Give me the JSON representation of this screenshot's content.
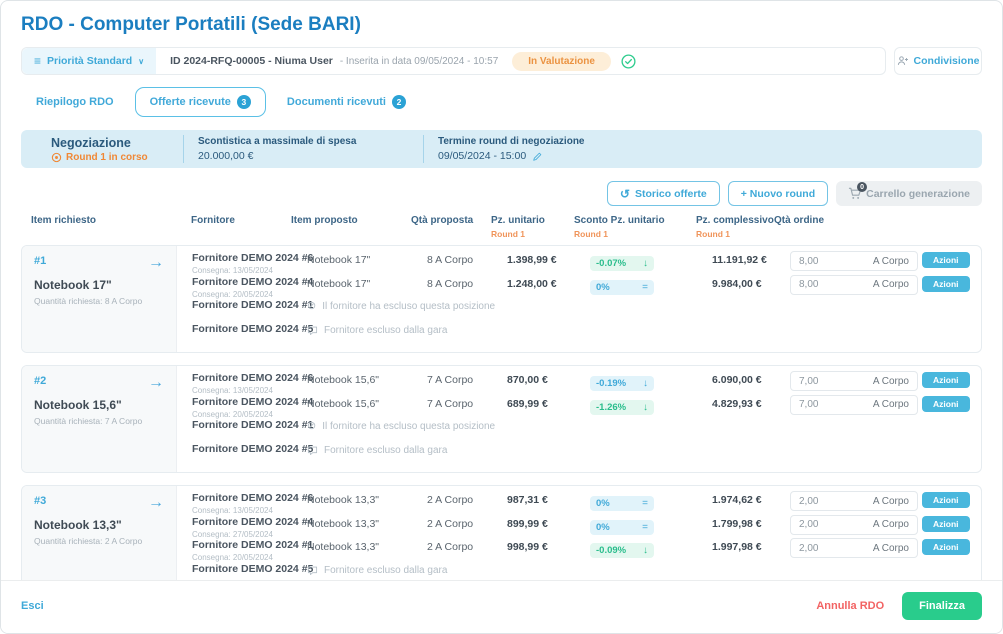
{
  "page": {
    "title": "RDO - Computer Portatili (Sede BARI)"
  },
  "topbar": {
    "priority_label": "Priorità Standard",
    "id_text": "ID 2024-RFQ-00005 - Niuma User",
    "inserted_text": "- Inserita in data 09/05/2024 - 10:57",
    "status_badge": "In Valutazione",
    "share_label": "Condivisione"
  },
  "tabs": [
    {
      "label": "Riepilogo RDO",
      "badge": null,
      "active": false
    },
    {
      "label": "Offerte ricevute",
      "badge": "3",
      "active": true
    },
    {
      "label": "Documenti ricevuti",
      "badge": "2",
      "active": false
    }
  ],
  "negotiation": {
    "title": "Negoziazione",
    "round_status": "Round 1 in corso",
    "discount_label": "Scontistica a massimale di spesa",
    "discount_value": "20.000,00 €",
    "deadline_label": "Termine round di negoziazione",
    "deadline_value": "09/05/2024 - 15:00"
  },
  "actions": {
    "history_label": "Storico offerte",
    "new_round_label": "+ Nuovo round",
    "cart_label": "Carrello generazione",
    "cart_badge": "0"
  },
  "table": {
    "headers": {
      "item_requested": "Item richiesto",
      "supplier": "Fornitore",
      "item_proposed": "Item proposto",
      "qty_proposed": "Qtà proposta",
      "unit_price": "Pz. unitario",
      "discount": "Sconto Pz. unitario",
      "total_price": "Pz. complessivo",
      "order_qty": "Qtà ordine"
    },
    "round_sublabel": "Round 1",
    "groups": [
      {
        "number": "#1",
        "name": "Notebook 17\"",
        "requested_qty": "Quantità richiesta: 8 A Corpo",
        "rows": [
          {
            "type": "offer",
            "supplier": "Fornitore DEMO 2024 #6",
            "delivery": "Consegna: 13/05/2024",
            "item": "Notebook 17\"",
            "qty": "8 A Corpo",
            "unit_price": "1.398,99 €",
            "discount": "-0.07%",
            "trend": "down",
            "style": "green",
            "total": "11.191,92 €",
            "order_qty": "8,00",
            "order_unit": "A Corpo",
            "action": "Azioni"
          },
          {
            "type": "offer",
            "supplier": "Fornitore DEMO 2024 #4",
            "delivery": "Consegna: 20/05/2024",
            "item": "Notebook 17\"",
            "qty": "8 A Corpo",
            "unit_price": "1.248,00 €",
            "discount": "0%",
            "trend": "equal",
            "style": "blue",
            "total": "9.984,00 €",
            "order_qty": "8,00",
            "order_unit": "A Corpo",
            "action": "Azioni"
          },
          {
            "type": "excluded-position",
            "supplier": "Fornitore DEMO 2024 #1",
            "note": "Il fornitore ha escluso questa posizione"
          },
          {
            "type": "excluded-tender",
            "supplier": "Fornitore DEMO 2024 #5",
            "note": "Fornitore escluso dalla gara"
          }
        ]
      },
      {
        "number": "#2",
        "name": "Notebook 15,6\"",
        "requested_qty": "Quantità richiesta: 7 A Corpo",
        "rows": [
          {
            "type": "offer",
            "supplier": "Fornitore DEMO 2024 #6",
            "delivery": "Consegna: 13/05/2024",
            "item": "Notebook 15,6\"",
            "qty": "7 A Corpo",
            "unit_price": "870,00 €",
            "discount": "-0.19%",
            "trend": "down",
            "style": "blue",
            "total": "6.090,00 €",
            "order_qty": "7,00",
            "order_unit": "A Corpo",
            "action": "Azioni"
          },
          {
            "type": "offer",
            "supplier": "Fornitore DEMO 2024 #4",
            "delivery": "Consegna: 20/05/2024",
            "item": "Notebook 15,6\"",
            "qty": "7 A Corpo",
            "unit_price": "689,99 €",
            "discount": "-1.26%",
            "trend": "down",
            "style": "green",
            "total": "4.829,93 €",
            "order_qty": "7,00",
            "order_unit": "A Corpo",
            "action": "Azioni"
          },
          {
            "type": "excluded-position",
            "supplier": "Fornitore DEMO 2024 #1",
            "note": "Il fornitore ha escluso questa posizione"
          },
          {
            "type": "excluded-tender",
            "supplier": "Fornitore DEMO 2024 #5",
            "note": "Fornitore escluso dalla gara"
          }
        ]
      },
      {
        "number": "#3",
        "name": "Notebook 13,3\"",
        "requested_qty": "Quantità richiesta: 2 A Corpo",
        "rows": [
          {
            "type": "offer",
            "supplier": "Fornitore DEMO 2024 #6",
            "delivery": "Consegna: 13/05/2024",
            "item": "Notebook 13,3\"",
            "qty": "2 A Corpo",
            "unit_price": "987,31 €",
            "discount": "0%",
            "trend": "equal",
            "style": "blue",
            "total": "1.974,62 €",
            "order_qty": "2,00",
            "order_unit": "A Corpo",
            "action": "Azioni"
          },
          {
            "type": "offer",
            "supplier": "Fornitore DEMO 2024 #4",
            "delivery": "Consegna: 27/05/2024",
            "item": "Notebook 13,3\"",
            "qty": "2 A Corpo",
            "unit_price": "899,99 €",
            "discount": "0%",
            "trend": "equal",
            "style": "blue",
            "total": "1.799,98 €",
            "order_qty": "2,00",
            "order_unit": "A Corpo",
            "action": "Azioni"
          },
          {
            "type": "offer",
            "supplier": "Fornitore DEMO 2024 #1",
            "delivery": "Consegna: 20/05/2024",
            "item": "Notebook 13,3\"",
            "qty": "2 A Corpo",
            "unit_price": "998,99 €",
            "discount": "-0.09%",
            "trend": "down",
            "style": "green",
            "total": "1.997,98 €",
            "order_qty": "2,00",
            "order_unit": "A Corpo",
            "action": "Azioni"
          },
          {
            "type": "excluded-tender",
            "supplier": "Fornitore DEMO 2024 #5",
            "note": "Fornitore escluso dalla gara"
          }
        ]
      }
    ]
  },
  "footer": {
    "exit_label": "Esci",
    "cancel_label": "Annulla RDO",
    "finalize_label": "Finalizza"
  },
  "icons": {
    "priority": "menu-icon",
    "priority_chevron": "chevron-down-icon",
    "status_check": "check-circle-icon",
    "share": "person-plus-icon",
    "round": "target-icon",
    "deadline_edit": "edit-pencil-icon",
    "history": "history-icon",
    "cart": "cart-icon",
    "group_arrow": "arrow-right-icon",
    "trend_down": "trend-down-icon",
    "trend_equal": "trend-equal-icon",
    "excluded_position": "excluded-position-icon",
    "excluded_tender": "chat-bubble-icon"
  },
  "colors": {
    "title_blue": "#1b7ec0",
    "link_blue": "#3fa9d8",
    "navy": "#2b5a7d",
    "orange": "#f08836",
    "status_orange_bg": "#fdeed8",
    "banner_bg": "#d9edf6",
    "green": "#29cc8c",
    "red": "#f26363",
    "badge_green_bg": "#e3f7ef",
    "badge_blue_bg": "#e1f3fa",
    "azioni_bg": "#49b7dd"
  }
}
